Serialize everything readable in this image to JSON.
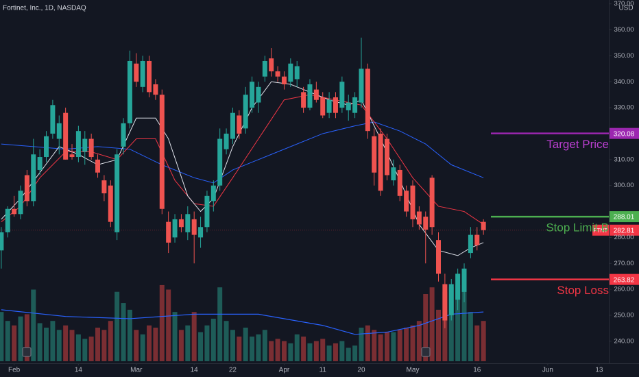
{
  "chart_data": {
    "type": "candlestick",
    "title": "Fortinet, Inc., 1D, NASDAQ",
    "currency": "USD",
    "xlim": [
      -0.2,
      94.5
    ],
    "xticks": [
      {
        "value": 2,
        "label": "Feb"
      },
      {
        "value": 12,
        "label": "14"
      },
      {
        "value": 21,
        "label": "Mar"
      },
      {
        "value": 30,
        "label": "14"
      },
      {
        "value": 36,
        "label": "22"
      },
      {
        "value": 44,
        "label": "Apr"
      },
      {
        "value": 50,
        "label": "11"
      },
      {
        "value": 56,
        "label": "20"
      },
      {
        "value": 64,
        "label": "May"
      },
      {
        "value": 74,
        "label": "16"
      },
      {
        "value": 85,
        "label": "Jun"
      },
      {
        "value": 93,
        "label": "13"
      }
    ],
    "ylim": [
      231.5,
      371.5
    ],
    "yticks": [
      {
        "value": 370,
        "label": "370.00"
      },
      {
        "value": 360,
        "label": "360.00"
      },
      {
        "value": 350,
        "label": "350.00"
      },
      {
        "value": 340,
        "label": "340.00"
      },
      {
        "value": 330,
        "label": "330.00"
      },
      {
        "value": 310,
        "label": "310.00"
      },
      {
        "value": 300,
        "label": "300.00"
      },
      {
        "value": 280,
        "label": "280.00"
      },
      {
        "value": 270,
        "label": "270.00"
      },
      {
        "value": 260,
        "label": "260.00"
      },
      {
        "value": 250,
        "label": "250.00"
      },
      {
        "value": 240,
        "label": "240.00"
      }
    ],
    "up_color": "#26a69a",
    "down_color": "#ef5350",
    "ohlc": [
      [
        275,
        284,
        268,
        282
      ],
      [
        282,
        292,
        280,
        291
      ],
      [
        291,
        296,
        288,
        289
      ],
      [
        289,
        300,
        287,
        298
      ],
      [
        304,
        306,
        292,
        294
      ],
      [
        294,
        318,
        292,
        312
      ],
      [
        306,
        314,
        304,
        311
      ],
      [
        311,
        321,
        309,
        319
      ],
      [
        320,
        333,
        318,
        331
      ],
      [
        318,
        327,
        312,
        324
      ],
      [
        328,
        330,
        310,
        310
      ],
      [
        312,
        316,
        310,
        311
      ],
      [
        311,
        323,
        309,
        321
      ],
      [
        313,
        321,
        308,
        318
      ],
      [
        318,
        320,
        310,
        311
      ],
      [
        310,
        312,
        303,
        305
      ],
      [
        302,
        304,
        294,
        297
      ],
      [
        300,
        302,
        284,
        286
      ],
      [
        282,
        314,
        279,
        312
      ],
      [
        315,
        326,
        312,
        324
      ],
      [
        324,
        352,
        322,
        348
      ],
      [
        347,
        351,
        338,
        340
      ],
      [
        338,
        350,
        336,
        348
      ],
      [
        348,
        350,
        334,
        336
      ],
      [
        339,
        341,
        333,
        335
      ],
      [
        335,
        337,
        289,
        291
      ],
      [
        286,
        290,
        274,
        278
      ],
      [
        280,
        289,
        278,
        287
      ],
      [
        287,
        289,
        282,
        284
      ],
      [
        282,
        292,
        279,
        289
      ],
      [
        287,
        290,
        270,
        281
      ],
      [
        280,
        288,
        276,
        284
      ],
      [
        284,
        298,
        282,
        296
      ],
      [
        294,
        302,
        290,
        300
      ],
      [
        300,
        322,
        298,
        318
      ],
      [
        314,
        322,
        312,
        320
      ],
      [
        318,
        330,
        316,
        328
      ],
      [
        327,
        329,
        318,
        320
      ],
      [
        322,
        338,
        320,
        335
      ],
      [
        330,
        342,
        328,
        340
      ],
      [
        332,
        340,
        328,
        338
      ],
      [
        342,
        350,
        340,
        348
      ],
      [
        349,
        353,
        342,
        344
      ],
      [
        344,
        346,
        340,
        342
      ],
      [
        342,
        344,
        337,
        339
      ],
      [
        340,
        349,
        338,
        347
      ],
      [
        341,
        348,
        338,
        346
      ],
      [
        336,
        338,
        328,
        330
      ],
      [
        330,
        341,
        329,
        339
      ],
      [
        337,
        340,
        332,
        333
      ],
      [
        334,
        336,
        326,
        327
      ],
      [
        328,
        336,
        326,
        333
      ],
      [
        334,
        336,
        326,
        328
      ],
      [
        330,
        342,
        328,
        340
      ],
      [
        329,
        335,
        325,
        332
      ],
      [
        328,
        336,
        326,
        334
      ],
      [
        332,
        357,
        330,
        345
      ],
      [
        345,
        347,
        318,
        321
      ],
      [
        319,
        322,
        300,
        305
      ],
      [
        320,
        322,
        296,
        298
      ],
      [
        318,
        320,
        302,
        304
      ],
      [
        302,
        310,
        300,
        307
      ],
      [
        306,
        308,
        294,
        296
      ],
      [
        298,
        300,
        288,
        290
      ],
      [
        300,
        302,
        284,
        287
      ],
      [
        290,
        292,
        283,
        285
      ],
      [
        288,
        290,
        270,
        283
      ],
      [
        303,
        304,
        281,
        284
      ],
      [
        279,
        282,
        263,
        266
      ],
      [
        262,
        266,
        245,
        248
      ],
      [
        250,
        264,
        248,
        262
      ],
      [
        256,
        268,
        252,
        266
      ],
      [
        259,
        270,
        255,
        268
      ],
      [
        274,
        284,
        272,
        281
      ],
      [
        281,
        284,
        275,
        277
      ],
      [
        286,
        287,
        281,
        282.81
      ]
    ],
    "volume": [
      2.2,
      1.8,
      1.6,
      2.0,
      2.1,
      3.2,
      1.7,
      1.5,
      1.8,
      1.4,
      1.6,
      1.4,
      1.2,
      1.0,
      1.1,
      1.5,
      1.4,
      1.8,
      3.1,
      2.6,
      2.3,
      1.4,
      1.2,
      1.6,
      1.5,
      3.4,
      3.2,
      2.2,
      1.4,
      1.6,
      2.2,
      1.3,
      1.6,
      1.9,
      3.3,
      1.8,
      1.4,
      1.1,
      1.5,
      1.1,
      1.2,
      1.4,
      0.9,
      1.0,
      0.9,
      0.8,
      1.2,
      1.1,
      0.8,
      0.9,
      1.0,
      0.7,
      0.8,
      0.9,
      0.6,
      0.7,
      1.5,
      1.6,
      1.4,
      1.2,
      1.3,
      1.3,
      1.4,
      1.5,
      1.6,
      1.8,
      3.0,
      3.3,
      2.3,
      3.1,
      3.3,
      3.4,
      3.2,
      2.2,
      1.6,
      1.8
    ],
    "volume_lim": [
      0,
      4.5
    ],
    "volume_up_color": "#1e5c58",
    "volume_down_color": "#7a2e33",
    "volume_ma": {
      "color": "#2962ff",
      "x": [
        0,
        10,
        20,
        30,
        40,
        50,
        55,
        60,
        65,
        70,
        75
      ],
      "values": [
        2.3,
        2.0,
        1.9,
        2.1,
        2.1,
        1.6,
        1.2,
        1.3,
        1.6,
        2.1,
        2.2
      ]
    },
    "moving_averages": [
      {
        "color": "#2962ff",
        "x": [
          0,
          5,
          10,
          15,
          20,
          25,
          30,
          33,
          36,
          40,
          45,
          50,
          55,
          58,
          62,
          66,
          70,
          75
        ],
        "values": [
          316,
          315,
          314,
          315,
          314,
          308,
          303,
          301,
          306,
          310,
          315,
          320,
          323,
          324.5,
          321,
          316,
          308,
          303
        ]
      },
      {
        "color": "#f23645",
        "x": [
          0,
          3,
          6,
          10,
          14,
          18,
          21,
          24,
          27,
          30,
          33,
          36,
          40,
          44,
          48,
          52,
          56,
          60,
          64,
          68,
          72,
          75
        ],
        "values": [
          286,
          292,
          303,
          313,
          313,
          310,
          318,
          318,
          302,
          293,
          292,
          303,
          318,
          333,
          335,
          333,
          331,
          318,
          303,
          292,
          290,
          285
        ]
      },
      {
        "color": "#e0e3eb",
        "x": [
          0,
          3,
          6,
          9,
          12,
          15,
          18,
          21,
          24,
          26,
          29,
          31,
          33,
          36,
          39,
          42,
          45,
          48,
          51,
          54,
          56,
          59,
          62,
          65,
          68,
          71,
          73,
          75
        ],
        "values": [
          287,
          295,
          305,
          315,
          312,
          308,
          310,
          326,
          326,
          318,
          296,
          290,
          295,
          315,
          330,
          340,
          339,
          336,
          333,
          331,
          333,
          318,
          302,
          285,
          275,
          273,
          276,
          278
        ]
      }
    ],
    "levels": [
      {
        "name": "Target Price",
        "value": 320.08,
        "value_label": "320.08",
        "color": "#9c27b0",
        "text_color": "#ba3fd0"
      },
      {
        "name": "Stop Limit B",
        "value": 288.01,
        "value_label": "288.01",
        "color": "#4caf50",
        "text_color": "#4caf50"
      },
      {
        "name": "Stop Loss",
        "value": 263.82,
        "value_label": "263.82",
        "color": "#f23645",
        "text_color": "#f23645"
      }
    ],
    "current_price": {
      "symbol": "FTNT",
      "value": 282.81,
      "value_label": "282.81",
      "color": "#f23645"
    }
  }
}
